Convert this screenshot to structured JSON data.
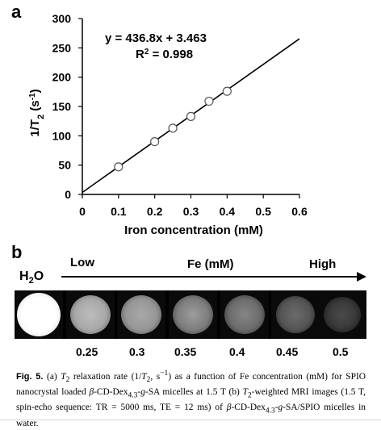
{
  "panel_a_label": "a",
  "panel_b_label": "b",
  "chart_data": {
    "type": "scatter",
    "xlabel": "Iron concentration (mM)",
    "ylabel": "1/T2 (s-1)",
    "ylabel_main": "1/T",
    "ylabel_sub": "2",
    "ylabel_unit": " (s",
    "ylabel_sup": "-1",
    "ylabel_close": ")",
    "xlim": [
      0,
      0.6
    ],
    "ylim": [
      0,
      300
    ],
    "xticks": [
      "0",
      "0.1",
      "0.2",
      "0.3",
      "0.4",
      "0.5",
      "0.6"
    ],
    "yticks": [
      "0",
      "50",
      "100",
      "150",
      "200",
      "250",
      "300"
    ],
    "x": [
      0.1,
      0.2,
      0.25,
      0.3,
      0.35,
      0.4
    ],
    "y": [
      47,
      90,
      113,
      133,
      159,
      176
    ],
    "fit_line": {
      "slope": 436.8,
      "intercept": 3.463
    },
    "equation": "y = 436.8x + 3.463",
    "r2_label": "R",
    "r2_sup": "2",
    "r2_value": " = 0.998",
    "grid": false
  },
  "panel_b": {
    "water_label": "H",
    "water_sub": "2",
    "water_tail": "O",
    "low_label": "Low",
    "fe_label": "Fe (mM)",
    "high_label": "High",
    "concentrations": [
      "0.25",
      "0.3",
      "0.35",
      "0.4",
      "0.45",
      "0.5"
    ]
  },
  "caption": {
    "fig_label": "Fig. 5.",
    "part1": " (a) ",
    "t2": "T",
    "t2sub": "2",
    "part2": " relaxation rate (1/",
    "t2b": "T",
    "t2bsub": "2",
    "part3": ", s",
    "sup1": "−1",
    "part4": ") as a function of Fe concentration (mM) for SPIO nanocrystal loaded ",
    "beta1": "β",
    "part5": "-CD-Dex",
    "sub1": "4.3",
    "part6": "-",
    "g1": "g",
    "part7": "-SA micelles at 1.5 T (b) ",
    "t2c": "T",
    "t2csub": "2",
    "part8": "-weighted MRI images (1.5 T, spin-echo sequence: TR = 5000 ms, TE = 12 ms) of ",
    "beta2": "β",
    "part9": "-CD-Dex",
    "sub2": "4.3",
    "part10": "-",
    "g2": "g",
    "part11": "-SA/SPIO micelles in water."
  }
}
